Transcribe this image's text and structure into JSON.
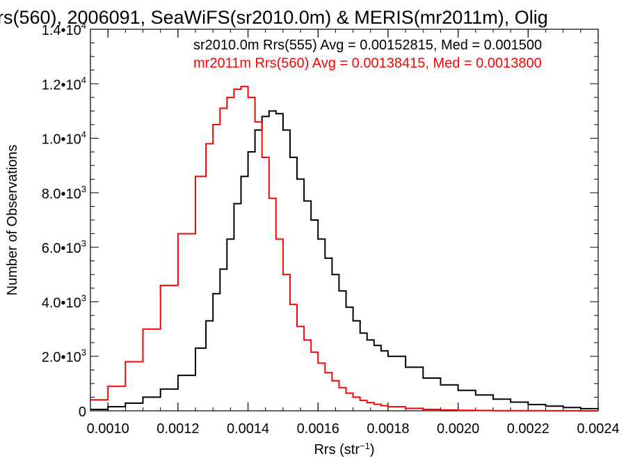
{
  "chart_data": {
    "type": "line",
    "title": "rs(560), 2006091, SeaWiFS(sr2010.0m) & MERIS(mr2011m), Olig",
    "xlabel": "Rrs (str⁻¹)",
    "ylabel": "Number of Observations",
    "xlim": [
      0.00095,
      0.0024
    ],
    "ylim": [
      0,
      14000
    ],
    "grid": false,
    "legend_position": "top-right",
    "x_ticks": [
      0.001,
      0.0012,
      0.0014,
      0.0016,
      0.0018,
      0.002,
      0.0022,
      0.0024
    ],
    "x_tick_labels": [
      "0.0010",
      "0.0012",
      "0.0014",
      "0.0016",
      "0.0018",
      "0.0020",
      "0.0022",
      "0.0024"
    ],
    "y_ticks": [
      0,
      2000,
      4000,
      6000,
      8000,
      10000,
      12000,
      14000
    ],
    "y_tick_labels": [
      {
        "mantissa": "0",
        "exp": ""
      },
      {
        "mantissa": "2.0•10",
        "exp": "3"
      },
      {
        "mantissa": "4.0•10",
        "exp": "3"
      },
      {
        "mantissa": "6.0•10",
        "exp": "3"
      },
      {
        "mantissa": "8.0•10",
        "exp": "3"
      },
      {
        "mantissa": "1.0•10",
        "exp": "4"
      },
      {
        "mantissa": "1.2•10",
        "exp": "4"
      },
      {
        "mantissa": "1.4•10",
        "exp": "4"
      }
    ],
    "series": [
      {
        "name": "sr2010.0m Rrs(555)",
        "legend_text": "sr2010.0m Rrs(555) Avg = 0.00152815, Med = 0.001500",
        "color": "#000000",
        "x": [
          0.00095,
          0.001,
          0.00105,
          0.0011,
          0.00115,
          0.0012,
          0.00125,
          0.00128,
          0.0013,
          0.00132,
          0.00134,
          0.00136,
          0.00138,
          0.0014,
          0.00142,
          0.00144,
          0.00146,
          0.00148,
          0.0015,
          0.00152,
          0.00154,
          0.00156,
          0.00158,
          0.0016,
          0.00162,
          0.00164,
          0.00166,
          0.00168,
          0.0017,
          0.00172,
          0.00174,
          0.00176,
          0.00178,
          0.0018,
          0.00185,
          0.0019,
          0.00195,
          0.002,
          0.00205,
          0.0021,
          0.00215,
          0.0022,
          0.00225,
          0.0023,
          0.00235,
          0.0024
        ],
        "y": [
          50,
          150,
          280,
          500,
          800,
          1300,
          2300,
          3300,
          4300,
          5200,
          6300,
          7600,
          8600,
          9500,
          10300,
          10800,
          11000,
          10900,
          10300,
          9300,
          8500,
          7700,
          7000,
          6300,
          5600,
          5000,
          4400,
          3800,
          3300,
          2850,
          2600,
          2400,
          2200,
          2000,
          1600,
          1200,
          950,
          750,
          580,
          430,
          320,
          230,
          170,
          120,
          80,
          50
        ]
      },
      {
        "name": "mr2011m Rrs(560)",
        "legend_text": "mr2011m Rrs(560) Avg = 0.00138415, Med = 0.0013800",
        "color": "#ff0000",
        "x": [
          0.00095,
          0.001,
          0.00105,
          0.0011,
          0.00115,
          0.0012,
          0.00125,
          0.00128,
          0.0013,
          0.00132,
          0.00134,
          0.00136,
          0.00138,
          0.0014,
          0.00142,
          0.00144,
          0.00146,
          0.00148,
          0.0015,
          0.00152,
          0.00154,
          0.00156,
          0.00158,
          0.0016,
          0.00162,
          0.00164,
          0.00166,
          0.00168,
          0.0017,
          0.00172,
          0.00174,
          0.00176,
          0.00178,
          0.0018,
          0.00185,
          0.0019,
          0.00195,
          0.002,
          0.00205,
          0.0021,
          0.00215,
          0.0022,
          0.00225,
          0.0023,
          0.00235,
          0.0024
        ],
        "y": [
          400,
          900,
          1800,
          3000,
          4600,
          6500,
          8600,
          9800,
          10500,
          11100,
          11500,
          11800,
          11900,
          11500,
          10600,
          9300,
          7800,
          6300,
          5000,
          3900,
          3100,
          2600,
          2150,
          1750,
          1400,
          1100,
          850,
          650,
          500,
          380,
          300,
          240,
          190,
          150,
          90,
          50,
          30,
          20,
          12,
          8,
          5,
          4,
          3,
          2,
          1,
          1
        ]
      }
    ]
  }
}
